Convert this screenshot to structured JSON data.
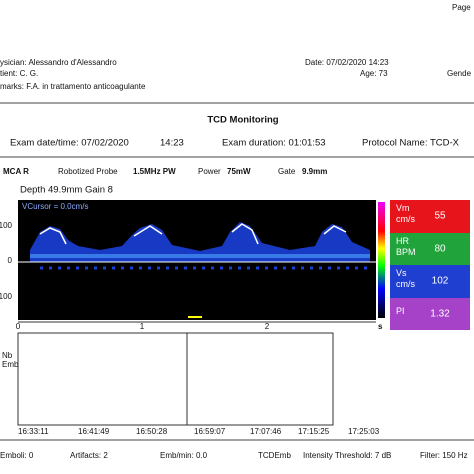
{
  "header": {
    "page": "Page",
    "physician": "ysician: Alessandro d'Alessandro",
    "date": "Date: 07/02/2020 14:23",
    "patient": "tient: C. G.",
    "age": "Age: 73",
    "gender": "Gende",
    "remarks": "marks: F.A. in trattamento  anticoagulante"
  },
  "title": "TCD Monitoring",
  "exam": {
    "datetime": "Exam date/time: 07/02/2020",
    "time": "14:23",
    "duration": "Exam duration: 01:01:53",
    "protocol": "Protocol Name: TCD-X"
  },
  "probe": {
    "vessel": "MCA  R",
    "probe_label": "Robotized Probe",
    "probe_value": "1.5MHz PW",
    "power_label": "Power",
    "power_value": "75mW",
    "gate_label": "Gate",
    "gate_value": "9.9mm"
  },
  "depth": "Depth 49.9mm  Gain 8",
  "spectrum": {
    "cursor": "VCursor = 0.0cm/s",
    "yticks": [
      "100",
      "0",
      "100"
    ],
    "xticks": [
      "0",
      "1",
      "2"
    ],
    "x_unit": "s"
  },
  "panel": [
    {
      "label": "Vm\ncm/s",
      "value": "55"
    },
    {
      "label": "HR\nBPM",
      "value": "80"
    },
    {
      "label": "Vs\ncm/s",
      "value": "102"
    },
    {
      "label": "PI",
      "value": "1.32"
    }
  ],
  "emboli_chart": {
    "ylabel": "Nb\nEmb",
    "times": [
      "16:33:11",
      "16:41:49",
      "16:50:28",
      "16:59:07",
      "17:07:46",
      "17:15:25",
      "17:25:03"
    ]
  },
  "footer": {
    "emboli": "Emboli: 0",
    "artifacts": "Artifacts: 2",
    "emb_min": "Emb/min: 0.0",
    "mode": "TCDEmb",
    "threshold": "Intensity Threshold: 7 dB",
    "filter": "Filter: 150 Hz"
  }
}
